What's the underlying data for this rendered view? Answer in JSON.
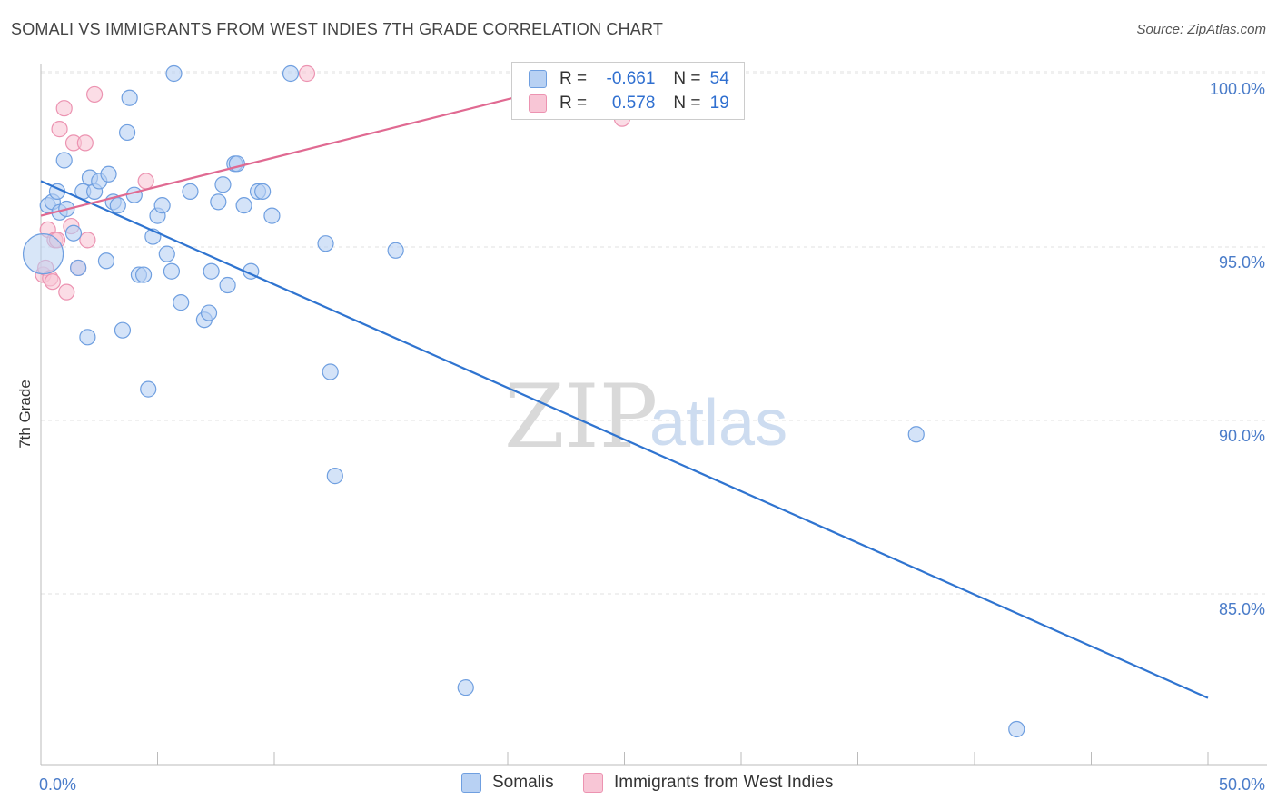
{
  "header": {
    "title": "SOMALI VS IMMIGRANTS FROM WEST INDIES 7TH GRADE CORRELATION CHART",
    "source": "Source: ZipAtlas.com"
  },
  "watermark": {
    "zip": "ZIP",
    "atlas": "atlas"
  },
  "legend": {
    "rows": [
      {
        "r_label": "R =",
        "r_value": "-0.661",
        "n_label": "N =",
        "n_value": "54"
      },
      {
        "r_label": "R =",
        "r_value": "0.578",
        "n_label": "N =",
        "n_value": "19"
      }
    ]
  },
  "bottom_legend": {
    "somalis": "Somalis",
    "west_indies": "Immigrants from West Indies"
  },
  "colors": {
    "somali_fill": "#b8d1f3",
    "somali_stroke": "#6f9fe0",
    "somali_line": "#2f74d0",
    "wi_fill": "#f8c6d6",
    "wi_stroke": "#ec93b1",
    "wi_line": "#e06a92",
    "tick_text": "#4a7cc9",
    "grid": "#e2e2e2"
  },
  "chart_data": {
    "type": "scatter",
    "title": "SOMALI VS IMMIGRANTS FROM WEST INDIES 7TH GRADE CORRELATION CHART",
    "xlabel": "",
    "ylabel": "7th Grade",
    "xlim": [
      0,
      50
    ],
    "ylim": [
      80,
      101
    ],
    "x_tick_labels": [
      "0.0%",
      "50.0%"
    ],
    "y_ticks": [
      85,
      90,
      95,
      100
    ],
    "y_tick_labels": [
      "85.0%",
      "90.0%",
      "95.0%",
      "100.0%"
    ],
    "grid": true,
    "legend_position": "top-center",
    "series": [
      {
        "name": "Somalis",
        "r": -0.661,
        "n": 54,
        "trend": {
          "x": [
            0,
            50
          ],
          "y": [
            96.9,
            82.0
          ]
        },
        "points": [
          [
            0.3,
            96.2
          ],
          [
            0.5,
            96.3
          ],
          [
            0.7,
            96.6
          ],
          [
            0.8,
            96.0
          ],
          [
            1.0,
            97.5
          ],
          [
            1.1,
            96.1
          ],
          [
            1.4,
            95.4
          ],
          [
            1.6,
            94.4
          ],
          [
            1.8,
            96.6
          ],
          [
            2.0,
            92.4
          ],
          [
            2.1,
            97.0
          ],
          [
            2.3,
            96.6
          ],
          [
            2.5,
            96.9
          ],
          [
            2.8,
            94.6
          ],
          [
            2.9,
            97.1
          ],
          [
            3.1,
            96.3
          ],
          [
            3.3,
            96.2
          ],
          [
            3.5,
            92.6
          ],
          [
            3.7,
            98.3
          ],
          [
            3.8,
            99.3
          ],
          [
            4.0,
            96.5
          ],
          [
            4.2,
            94.2
          ],
          [
            4.4,
            94.2
          ],
          [
            4.6,
            90.9
          ],
          [
            4.8,
            95.3
          ],
          [
            5.0,
            95.9
          ],
          [
            5.2,
            96.2
          ],
          [
            5.4,
            94.8
          ],
          [
            5.6,
            94.3
          ],
          [
            5.7,
            100.0
          ],
          [
            6.0,
            93.4
          ],
          [
            6.4,
            96.6
          ],
          [
            7.0,
            92.9
          ],
          [
            7.2,
            93.1
          ],
          [
            7.3,
            94.3
          ],
          [
            7.6,
            96.3
          ],
          [
            7.8,
            96.8
          ],
          [
            8.0,
            93.9
          ],
          [
            8.3,
            97.4
          ],
          [
            8.4,
            97.4
          ],
          [
            8.7,
            96.2
          ],
          [
            9.0,
            94.3
          ],
          [
            9.3,
            96.6
          ],
          [
            9.5,
            96.6
          ],
          [
            9.9,
            95.9
          ],
          [
            10.7,
            100.0
          ],
          [
            12.2,
            95.1
          ],
          [
            12.4,
            91.4
          ],
          [
            12.6,
            88.4
          ],
          [
            15.2,
            94.9
          ],
          [
            18.2,
            82.3
          ],
          [
            37.5,
            89.6
          ],
          [
            41.8,
            81.1
          ],
          [
            0.1,
            94.8
          ]
        ]
      },
      {
        "name": "Immigrants from West Indies",
        "r": 0.578,
        "n": 19,
        "trend": {
          "x": [
            0,
            25
          ],
          "y": [
            95.9,
            100.1
          ]
        },
        "points": [
          [
            0.1,
            94.2
          ],
          [
            0.2,
            94.4
          ],
          [
            0.3,
            95.5
          ],
          [
            0.4,
            94.1
          ],
          [
            0.5,
            94.0
          ],
          [
            0.6,
            95.2
          ],
          [
            0.7,
            95.2
          ],
          [
            0.8,
            98.4
          ],
          [
            1.0,
            99.0
          ],
          [
            1.1,
            93.7
          ],
          [
            1.3,
            95.6
          ],
          [
            1.4,
            98.0
          ],
          [
            1.6,
            94.4
          ],
          [
            1.9,
            98.0
          ],
          [
            2.0,
            95.2
          ],
          [
            2.3,
            99.4
          ],
          [
            4.5,
            96.9
          ],
          [
            11.4,
            100.0
          ],
          [
            24.9,
            98.7
          ]
        ]
      }
    ]
  }
}
